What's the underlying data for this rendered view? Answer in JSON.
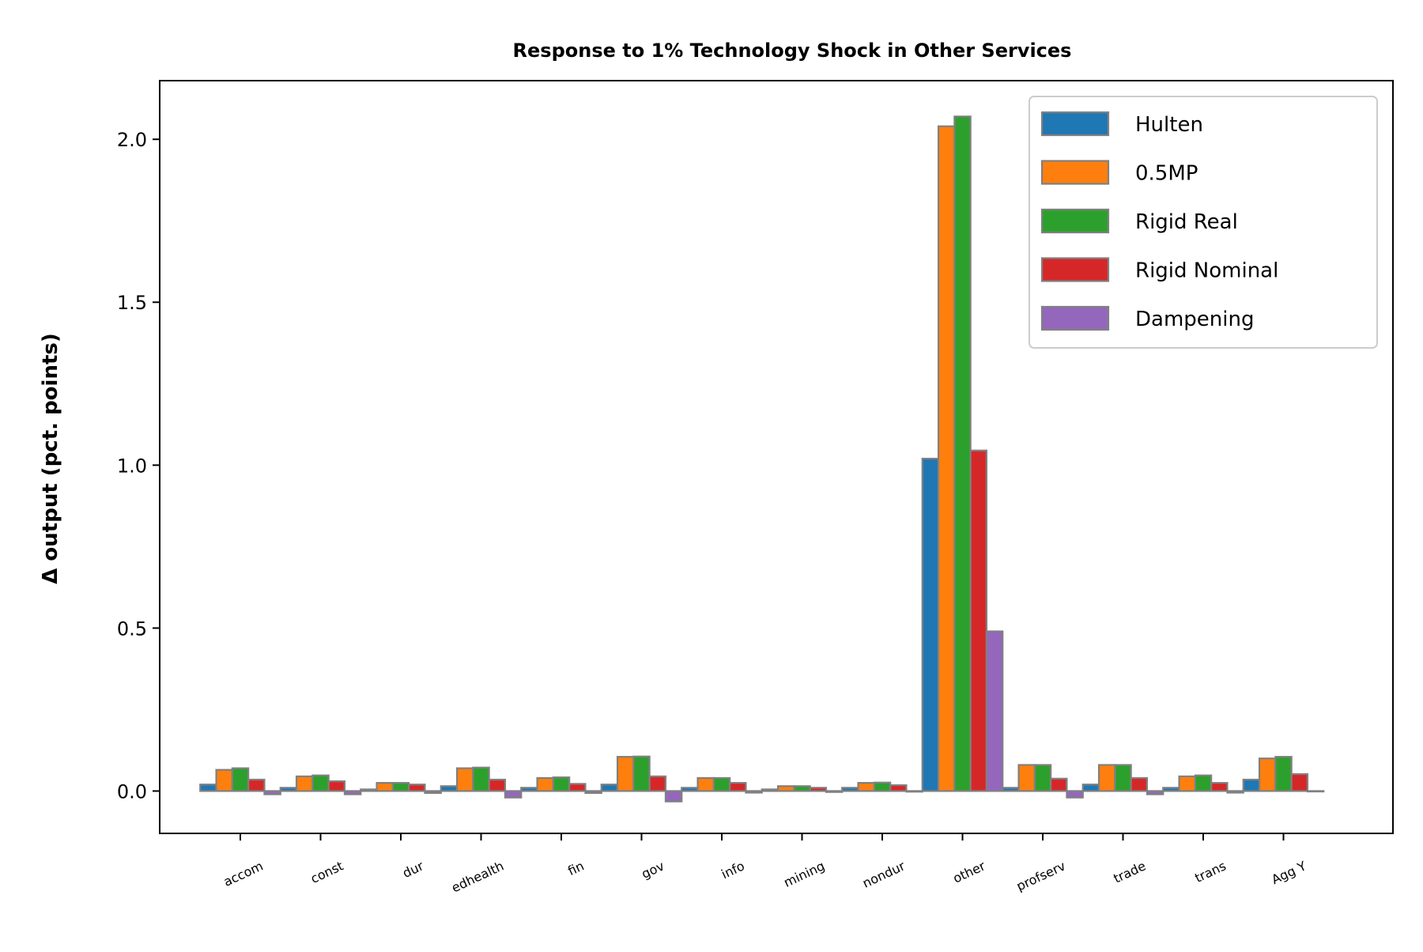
{
  "chart_data": {
    "type": "bar",
    "title": "Response to 1% Technology Shock in Other Services",
    "xlabel": "",
    "ylabel": "Δ output (pct. points)",
    "categories": [
      "accom",
      "const",
      "dur",
      "edhealth",
      "fin",
      "gov",
      "info",
      "mining",
      "nondur",
      "other",
      "profserv",
      "trade",
      "trans",
      "Agg Y"
    ],
    "ylim": [
      -0.13,
      2.18
    ],
    "yticks": [
      0.0,
      0.5,
      1.0,
      1.5,
      2.0
    ],
    "ytick_labels": [
      "0.0",
      "0.5",
      "1.0",
      "1.5",
      "2.0"
    ],
    "grid": false,
    "legend_position": "top-right",
    "series": [
      {
        "name": "Hulten",
        "color": "#1f77b4",
        "values": [
          0.02,
          0.01,
          0.005,
          0.015,
          0.01,
          0.02,
          0.01,
          0.005,
          0.01,
          1.02,
          0.01,
          0.02,
          0.01,
          0.035
        ]
      },
      {
        "name": "0.5MP",
        "color": "#ff7f0e",
        "values": [
          0.065,
          0.045,
          0.025,
          0.07,
          0.04,
          0.105,
          0.04,
          0.015,
          0.025,
          2.04,
          0.08,
          0.08,
          0.045,
          0.1
        ]
      },
      {
        "name": "Rigid Real",
        "color": "#2ca02c",
        "values": [
          0.07,
          0.048,
          0.025,
          0.072,
          0.042,
          0.106,
          0.04,
          0.015,
          0.026,
          2.07,
          0.08,
          0.08,
          0.048,
          0.105
        ]
      },
      {
        "name": "Rigid Nominal",
        "color": "#d62728",
        "values": [
          0.035,
          0.03,
          0.02,
          0.035,
          0.022,
          0.045,
          0.025,
          0.01,
          0.018,
          1.045,
          0.038,
          0.04,
          0.025,
          0.052
        ]
      },
      {
        "name": "Dampening",
        "color": "#9467bd",
        "values": [
          -0.01,
          -0.01,
          -0.006,
          -0.02,
          -0.006,
          -0.032,
          -0.005,
          -0.003,
          -0.002,
          0.49,
          -0.02,
          -0.01,
          -0.005,
          0.0
        ]
      }
    ]
  }
}
